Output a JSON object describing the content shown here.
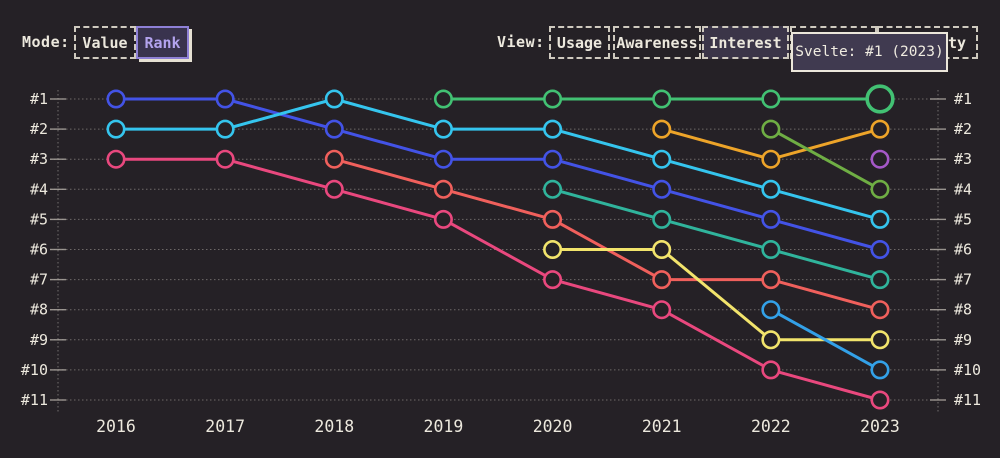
{
  "toolbar": {
    "mode_label": "Mode:",
    "mode_options": [
      {
        "label": "Value",
        "selected": false
      },
      {
        "label": "Rank",
        "selected": true
      }
    ],
    "view_label": "View:",
    "view_options": [
      {
        "label": "Usage",
        "selected": false
      },
      {
        "label": "Awareness",
        "selected": false
      },
      {
        "label": "Interest",
        "selected": true
      },
      {
        "label": "",
        "selected": false,
        "clipped_by_tooltip": true
      },
      {
        "label": "ty",
        "selected": false,
        "clipped_by_tooltip": true
      }
    ]
  },
  "tooltip": {
    "text": "Svelte: #1 (2023)"
  },
  "colors": {
    "background": "#252126",
    "text": "#ece8dd",
    "grid": "#87827f",
    "axis_tick": "#a5a09a",
    "selected_accent": "#b3a3ee",
    "tooltip_bg": "#403a50",
    "tooltip_border": "#ece7db"
  },
  "chart_data": {
    "type": "line",
    "variant": "bump-rank",
    "title": "",
    "x": [
      "2016",
      "2017",
      "2018",
      "2019",
      "2020",
      "2021",
      "2022",
      "2023"
    ],
    "y_ticks": [
      "#1",
      "#2",
      "#3",
      "#4",
      "#5",
      "#6",
      "#7",
      "#8",
      "#9",
      "#10",
      "#11"
    ],
    "y_axis": "rank (1 = top, shown on both sides)",
    "grid": "dotted horizontal lines per rank",
    "series": [
      {
        "name": "blue",
        "color": "#4353e6",
        "ranks": [
          1,
          1,
          2,
          3,
          3,
          4,
          5,
          6
        ]
      },
      {
        "name": "cyan",
        "color": "#35c5ee",
        "ranks": [
          2,
          2,
          1,
          2,
          2,
          3,
          4,
          5
        ]
      },
      {
        "name": "pink",
        "color": "#e9487e",
        "ranks": [
          3,
          3,
          4,
          5,
          7,
          8,
          10,
          11
        ]
      },
      {
        "name": "salmon-red",
        "color": "#f0605c",
        "ranks": [
          null,
          null,
          3,
          4,
          5,
          7,
          7,
          8
        ]
      },
      {
        "name": "svelte-green",
        "color": "#42c173",
        "ranks": [
          null,
          null,
          null,
          1,
          1,
          1,
          1,
          1
        ]
      },
      {
        "name": "teal",
        "color": "#30b49c",
        "ranks": [
          null,
          null,
          null,
          null,
          4,
          5,
          6,
          7
        ]
      },
      {
        "name": "yellow",
        "color": "#f2e46c",
        "ranks": [
          null,
          null,
          null,
          null,
          6,
          6,
          9,
          9
        ]
      },
      {
        "name": "orange",
        "color": "#eda429",
        "ranks": [
          null,
          null,
          null,
          null,
          null,
          2,
          3,
          2
        ]
      },
      {
        "name": "olive-green",
        "color": "#6fae44",
        "ranks": [
          null,
          null,
          null,
          null,
          null,
          null,
          2,
          4
        ]
      },
      {
        "name": "sky-blue",
        "color": "#33a1e8",
        "ranks": [
          null,
          null,
          null,
          null,
          null,
          null,
          8,
          10
        ]
      },
      {
        "name": "purple",
        "color": "#a558c8",
        "ranks": [
          null,
          null,
          null,
          null,
          null,
          null,
          null,
          3
        ]
      }
    ],
    "highlight": {
      "series": "svelte-green",
      "x": "2023",
      "rank": 1,
      "label": "Svelte: #1 (2023)"
    }
  }
}
